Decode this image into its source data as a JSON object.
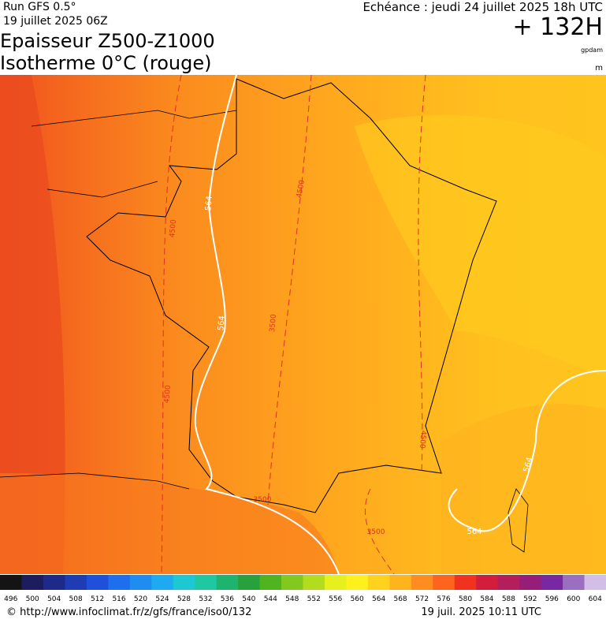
{
  "header": {
    "run": "Run GFS 0.5°",
    "run_date": "19 juillet 2025 06Z",
    "title": "Epaisseur Z500-Z1000",
    "subtitle": "Isotherme 0°C (rouge)",
    "valid": "Echéance : jeudi 24 juillet 2025 18h UTC",
    "lead": "+ 132H",
    "unit_top": "gpdam",
    "unit_bottom": "m"
  },
  "map": {
    "thickness_labels": [
      "564",
      "564",
      "564",
      "564"
    ],
    "isotherm_labels": [
      "4500",
      "4500",
      "3500",
      "4500",
      "4500",
      "3500",
      "3500"
    ]
  },
  "colorbar": {
    "ticks": [
      496,
      500,
      504,
      508,
      512,
      516,
      520,
      524,
      528,
      532,
      536,
      540,
      544,
      548,
      552,
      556,
      560,
      564,
      568,
      572,
      576,
      580,
      584,
      588,
      592,
      596,
      600,
      604
    ],
    "colors": [
      "#141414",
      "#1c1c5e",
      "#1e2a8a",
      "#1e3cb4",
      "#1e50dc",
      "#1e6ef0",
      "#1e8cf0",
      "#1eaaf0",
      "#1ec8d2",
      "#1ec8a0",
      "#1eb46e",
      "#28a03c",
      "#50b41e",
      "#82c81e",
      "#b4dc1e",
      "#e6f01e",
      "#fff01e",
      "#ffd21e",
      "#ffb41e",
      "#ff8c1e",
      "#ff641e",
      "#f0321e",
      "#d21e3c",
      "#b41e5a",
      "#961e78",
      "#7828a0",
      "#9a6ec0",
      "#d2bee6"
    ]
  },
  "footer": {
    "source": "© http://www.infoclimat.fr/z/gfs/france/iso0/132",
    "generated": "19 juil. 2025 10:11 UTC"
  }
}
